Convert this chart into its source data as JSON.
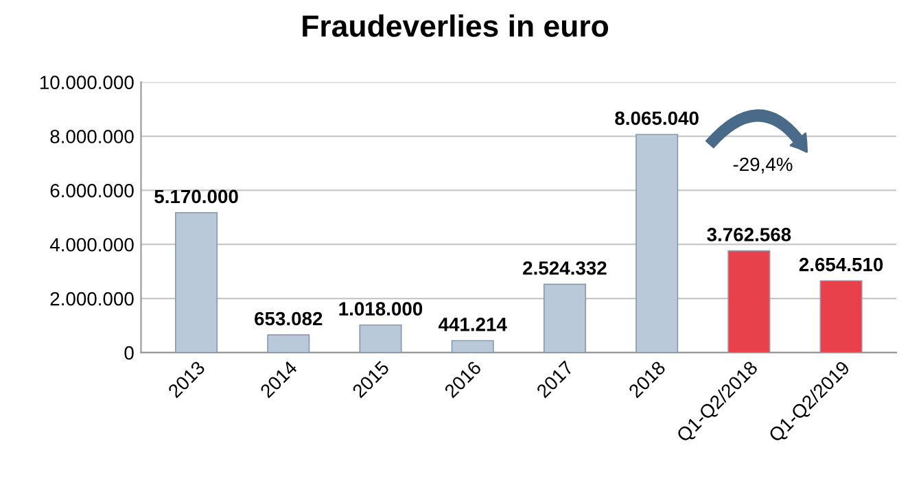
{
  "chart_data": {
    "type": "bar",
    "title": "Fraudeverlies in euro",
    "categories": [
      "2013",
      "2014",
      "2015",
      "2016",
      "2017",
      "2018",
      "Q1-Q2/2018",
      "Q1-Q2/2019"
    ],
    "values": [
      5170000,
      653082,
      1018000,
      441214,
      2524332,
      8065040,
      3762568,
      2654510
    ],
    "colors": [
      "#b9c9d9",
      "#b9c9d9",
      "#b9c9d9",
      "#b9c9d9",
      "#b9c9d9",
      "#b9c9d9",
      "#e8414b",
      "#e8414b"
    ],
    "value_labels": [
      "5.170.000",
      "653.082",
      "1.018.000",
      "441.214",
      "2.524.332",
      "8.065.040",
      "3.762.568",
      "2.654.510"
    ],
    "ylim": [
      0,
      10000000
    ],
    "yticks": [
      {
        "value": 0,
        "label": "0"
      },
      {
        "value": 2000000,
        "label": "2.000.000"
      },
      {
        "value": 4000000,
        "label": "4.000.000"
      },
      {
        "value": 6000000,
        "label": "6.000.000"
      },
      {
        "value": 8000000,
        "label": "8.000.000"
      },
      {
        "value": 10000000,
        "label": "10.000.000"
      }
    ],
    "grid": "y",
    "annotations": [
      "-29,4%"
    ]
  }
}
